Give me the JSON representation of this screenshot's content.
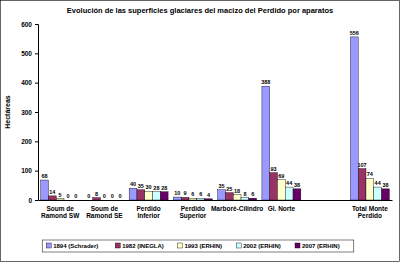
{
  "chart_data": {
    "type": "bar",
    "title": "Evolución de las superficies glaciares del macizo del Perdido por aparatos",
    "y_label": "Hectáreas",
    "categories": [
      "Soum de Ramond SW",
      "Soum de Ramond SE",
      "Perdido Inferior",
      "Perdido Superior",
      "Marboré-Cilindro",
      "Gl. Norte",
      null,
      "Total Monte Perdido"
    ],
    "series": [
      {
        "name": "1894 (Schrader)",
        "color": "#9999ff",
        "values": [
          68,
          0,
          40,
          10,
          35,
          388,
          null,
          556
        ]
      },
      {
        "name": "1982 (INEGLA)",
        "color": "#993366",
        "values": [
          14,
          8,
          35,
          9,
          25,
          93,
          null,
          107
        ]
      },
      {
        "name": "1993 (ERHIN)",
        "color": "#ffffcc",
        "values": [
          5,
          0,
          30,
          6,
          18,
          69,
          null,
          74
        ]
      },
      {
        "name": "2002 (ERHIN)",
        "color": "#ccffff",
        "values": [
          0,
          0,
          28,
          6,
          8,
          44,
          null,
          44
        ]
      },
      {
        "name": "2007 (ERHIN)",
        "color": "#660066",
        "values": [
          0,
          0,
          28,
          4,
          6,
          38,
          null,
          38
        ]
      }
    ],
    "ylim": [
      0,
      600
    ],
    "yticks": [
      0,
      100,
      200,
      300,
      400,
      500,
      600
    ],
    "grid": false,
    "legend": "bottom",
    "data_labels": true
  }
}
